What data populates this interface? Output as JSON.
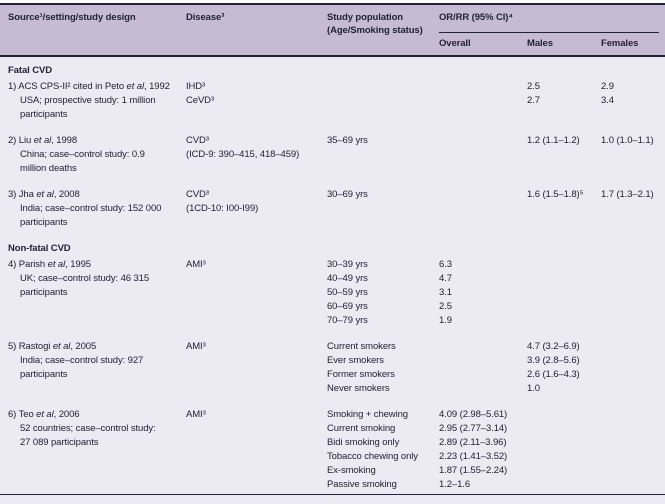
{
  "colors": {
    "header_bg": "#c5bcd4",
    "page_bg": "#eceaf2",
    "rule": "#232135",
    "text": "#232135"
  },
  "header": {
    "source": "Source¹/setting/study design",
    "disease": "Disease³",
    "population": "Study population (Age/Smoking status)",
    "or_rr_group": "OR/RR (95% CI)⁴",
    "overall": "Overall",
    "males": "Males",
    "females": "Females"
  },
  "sections": [
    {
      "label": "Fatal CVD",
      "rows": [
        {
          "source_line1": {
            "pre": "1) ACS CPS-II² cited in Peto ",
            "italic": "et al",
            "post": ", 1992"
          },
          "source_rest": [
            "USA; prospective study: 1 million",
            "participants"
          ],
          "disease": [
            "IHD³",
            "CeVD³"
          ],
          "population": [],
          "overall": [],
          "males": [
            "2.5",
            "2.7"
          ],
          "females": [
            "2.9",
            "3.4"
          ]
        },
        {
          "source_line1": {
            "pre": "2) Liu ",
            "italic": "et al",
            "post": ", 1998"
          },
          "source_rest": [
            "China; case–control study: 0.9",
            "million deaths"
          ],
          "disease": [
            "CVD³",
            "(ICD-9: 390–415, 418–459)"
          ],
          "population": [
            "35–69 yrs"
          ],
          "overall": [],
          "males": [
            "1.2 (1.1–1.2)"
          ],
          "females": [
            "1.0 (1.0–1.1)"
          ]
        },
        {
          "source_line1": {
            "pre": "3) Jha ",
            "italic": "et al",
            "post": ", 2008"
          },
          "source_rest": [
            "India; case–control study: 152 000",
            "participants"
          ],
          "disease": [
            "CVD³",
            "(1CD-10: I00-I99)"
          ],
          "population": [
            "30–69 yrs"
          ],
          "overall": [],
          "males": [
            "1.6 (1.5–1.8)⁵"
          ],
          "females": [
            "1.7 (1.3–2.1)"
          ]
        }
      ]
    },
    {
      "label": "Non-fatal CVD",
      "rows": [
        {
          "source_line1": {
            "pre": "4) Parish ",
            "italic": "et al",
            "post": ", 1995"
          },
          "source_rest": [
            "UK; case–control study: 46 315",
            "participants"
          ],
          "disease": [
            "AMI³"
          ],
          "population": [
            "30–39 yrs",
            "40–49 yrs",
            "50–59 yrs",
            "60–69 yrs",
            "70–79 yrs"
          ],
          "overall": [
            "6.3",
            "4.7",
            "3.1",
            "2.5",
            "1.9"
          ],
          "males": [],
          "females": []
        },
        {
          "source_line1": {
            "pre": "5) Rastogi ",
            "italic": "et al",
            "post": ", 2005"
          },
          "source_rest": [
            "India; case–control study: 927",
            "participants"
          ],
          "disease": [
            "AMI³"
          ],
          "population": [
            "Current smokers",
            "Ever smokers",
            "Former smokers",
            "Never smokers"
          ],
          "overall": [],
          "males": [
            "4.7 (3.2–6.9)",
            "3.9 (2.8–5.6)",
            "2.6 (1.6–4.3)",
            "1.0"
          ],
          "females": []
        },
        {
          "source_line1": {
            "pre": "6) Teo ",
            "italic": "et al",
            "post": ", 2006"
          },
          "source_rest": [
            "52 countries; case–control study:",
            "27 089 participants"
          ],
          "disease": [
            "AMI³"
          ],
          "population": [
            "Smoking + chewing",
            "Current smoking",
            "Bidi smoking only",
            "Tobacco chewing only",
            "Ex-smoking",
            "Passive smoking"
          ],
          "overall": [
            "4.09 (2.98–5.61)",
            "2.95 (2.77–3.14)",
            "2.89 (2.11–3.96)",
            "2.23 (1.41–3.52)",
            "1.87 (1.55–2.24)",
            "1.2–1.6"
          ],
          "males": [],
          "females": []
        }
      ]
    }
  ]
}
